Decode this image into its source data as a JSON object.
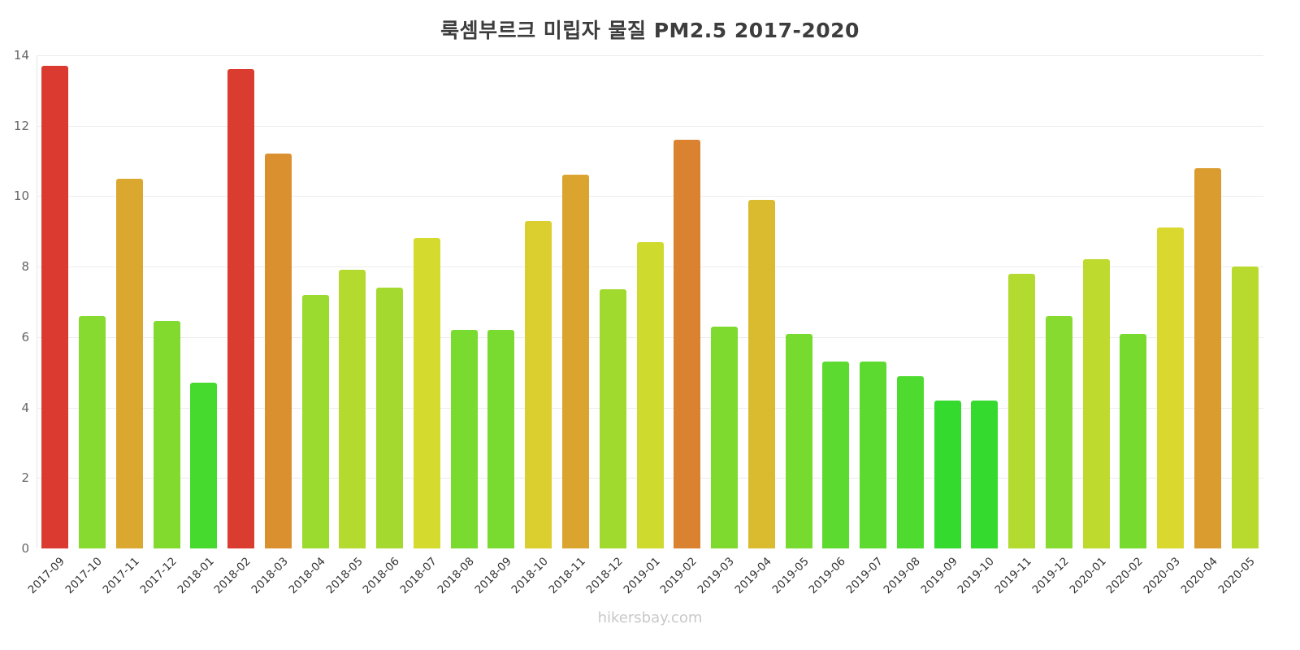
{
  "chart_data": {
    "type": "bar",
    "title": "룩셈부르크 미립자 물질 PM2.5 2017-2020",
    "footer": "hikersbay.com",
    "xlabel": "",
    "ylabel": "",
    "ylim": [
      0,
      14
    ],
    "yticks": [
      0,
      2,
      4,
      6,
      8,
      10,
      12,
      14
    ],
    "grid": "horizontal",
    "legend_position": "none",
    "categories": [
      "2017-09",
      "2017-10",
      "2017-11",
      "2017-12",
      "2018-01",
      "2018-02",
      "2018-03",
      "2018-04",
      "2018-05",
      "2018-06",
      "2018-07",
      "2018-08",
      "2018-09",
      "2018-10",
      "2018-11",
      "2018-12",
      "2019-01",
      "2019-02",
      "2019-03",
      "2019-04",
      "2019-05",
      "2019-06",
      "2019-07",
      "2019-08",
      "2019-09",
      "2019-10",
      "2019-11",
      "2019-12",
      "2020-01",
      "2020-02",
      "2020-03",
      "2020-04",
      "2020-05"
    ],
    "values": [
      13.7,
      6.6,
      10.5,
      6.45,
      4.7,
      13.6,
      11.2,
      7.2,
      7.9,
      7.4,
      8.8,
      6.2,
      6.2,
      9.3,
      10.6,
      7.35,
      8.7,
      11.6,
      6.3,
      9.9,
      6.1,
      5.3,
      5.3,
      4.9,
      4.2,
      4.2,
      7.8,
      6.6,
      8.2,
      6.1,
      9.1,
      10.8,
      8.0
    ],
    "colors": [
      "#DA3A2F",
      "#87DA2F",
      "#DAA72F",
      "#82DA2F",
      "#46DA2F",
      "#DA3D2F",
      "#DA902F",
      "#9BDA2F",
      "#B5DA2F",
      "#A4DA2F",
      "#D5DA2F",
      "#79DA2F",
      "#79DA2F",
      "#DACF2F",
      "#DAA42F",
      "#A1DA2F",
      "#CFDA2F",
      "#DA822F",
      "#7FDA2F",
      "#DABB2F",
      "#76DA2F",
      "#5DDA2F",
      "#5DDA2F",
      "#4EDA2F",
      "#35DA2F",
      "#35DA2F",
      "#B2DA2F",
      "#87DA2F",
      "#BEDA2F",
      "#76DA2F",
      "#DAD72F",
      "#DA9B2F",
      "#B8DA2F"
    ],
    "gridline_color": "#ececec",
    "axis_line_color": "#e4e4e4",
    "title_color": "#3d3d3d",
    "tick_label_color": "#666666",
    "x_label_color": "#333333",
    "footer_color": "#c8c8c8"
  }
}
